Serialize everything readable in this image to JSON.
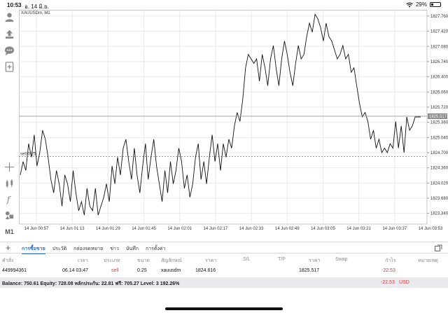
{
  "status": {
    "time": "10:53",
    "date": "อ. 14 มิ.ย.",
    "battery": "29%",
    "battery_level": 0.29
  },
  "toolbar": {
    "timeframe": "M1"
  },
  "chart_data": {
    "type": "line",
    "symbol_label": "XAUUSDm, M1",
    "ylim": [
      1823.1,
      1827.9
    ],
    "y_ticks": [
      "1827.760",
      "1827.420",
      "1827.080",
      "1826.740",
      "1826.400",
      "1826.060",
      "1825.720",
      "1825.380",
      "1825.040",
      "1824.700",
      "1824.360",
      "1824.020",
      "1823.680",
      "1823.340"
    ],
    "x_ticks": [
      "14 Jun 00:57",
      "14 Jun 01:13",
      "14 Jun 01:29",
      "14 Jun 01:45",
      "14 Jun 02:01",
      "14 Jun 02:17",
      "14 Jun 02:33",
      "14 Jun 02:49",
      "14 Jun 03:05",
      "14 Jun 03:21",
      "14 Jun 03:37",
      "14 Jun 03:53"
    ],
    "current_price": "1825.517",
    "current_price_value": 1825.517,
    "order_line_label": "sell 0.25",
    "order_line_value": 1824.616,
    "close": [
      1824.2,
      1824.5,
      1824.3,
      1824.9,
      1824.6,
      1825.1,
      1824.4,
      1824.7,
      1825.2,
      1825.0,
      1824.6,
      1824.1,
      1823.8,
      1824.3,
      1824.0,
      1823.5,
      1824.2,
      1824.0,
      1823.6,
      1824.3,
      1823.8,
      1823.4,
      1823.6,
      1823.3,
      1823.9,
      1823.5,
      1823.4,
      1823.9,
      1823.3,
      1823.5,
      1823.7,
      1824.0,
      1823.6,
      1824.4,
      1824.0,
      1824.6,
      1824.2,
      1824.8,
      1825.0,
      1824.5,
      1824.1,
      1824.8,
      1824.2,
      1823.8,
      1824.4,
      1824.9,
      1824.1,
      1824.6,
      1825.0,
      1824.4,
      1824.0,
      1823.6,
      1824.3,
      1823.8,
      1824.5,
      1824.0,
      1824.3,
      1824.8,
      1824.5,
      1823.9,
      1824.2,
      1823.7,
      1824.0,
      1824.6,
      1824.9,
      1824.1,
      1824.5,
      1824.0,
      1824.6,
      1825.1,
      1824.5,
      1824.9,
      1824.3,
      1824.9,
      1824.6,
      1825.0,
      1824.8,
      1825.3,
      1825.6,
      1825.4,
      1825.9,
      1826.6,
      1826.9,
      1826.8,
      1826.7,
      1826.8,
      1826.3,
      1826.9,
      1826.6,
      1826.2,
      1826.8,
      1827.1,
      1826.6,
      1826.2,
      1826.8,
      1827.2,
      1826.9,
      1826.5,
      1826.2,
      1826.7,
      1827.1,
      1826.8,
      1826.9,
      1827.3,
      1827.6,
      1827.4,
      1827.8,
      1827.7,
      1827.5,
      1827.2,
      1827.6,
      1827.3,
      1827.2,
      1827.0,
      1826.8,
      1826.9,
      1827.1,
      1826.8,
      1826.9,
      1826.5,
      1826.6,
      1826.2,
      1825.8,
      1825.5,
      1825.6,
      1825.4,
      1825.0,
      1825.2,
      1824.8,
      1825.0,
      1824.7,
      1824.8,
      1824.7,
      1824.9,
      1824.8,
      1825.4,
      1824.8,
      1825.3,
      1824.7,
      1825.5,
      1825.2,
      1825.3,
      1825.5,
      1825.5,
      1825.5
    ]
  },
  "tabs": [
    "การซื้อขาย",
    "ประวัติ",
    "กล่องจดหมาย",
    "ข่าว",
    "บันทึก",
    "การตั้งค่า"
  ],
  "table": {
    "headers": [
      "คำสั่ง",
      "เวลา",
      "ประเภท",
      "ขนาด",
      "สัญลักษณ์",
      "ราคา",
      "S/L",
      "T/P",
      "ราคา",
      "Swap",
      "กำไร",
      "หมายเหตุ"
    ],
    "row": {
      "order": "449994361",
      "time": "06.14 03:47",
      "type": "sell",
      "volume": "0.25",
      "symbol": "xauusdm",
      "open_price": "1824.616",
      "sl": "",
      "tp": "",
      "price": "1825.517",
      "swap": "",
      "profit": "-22.53",
      "comment": ""
    }
  },
  "balance": {
    "text": "Balance: 750.61 Equity: 728.08 หลักประกัน: 22.81 ฟรี: 705.27 Level: 3 192.26%",
    "profit": "-22.53",
    "currency": "USD"
  },
  "colors": {
    "accent": "#2a6bd6",
    "loss": "#d63b3b",
    "price_line": "#111111",
    "grid": "#e9e9e9"
  }
}
